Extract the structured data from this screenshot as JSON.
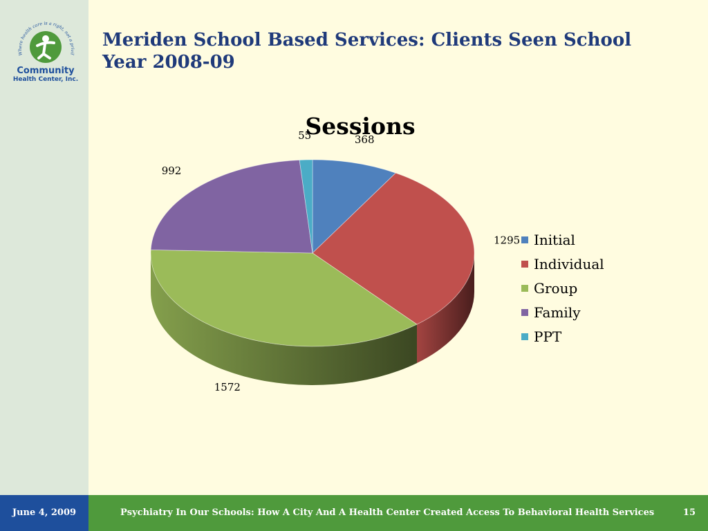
{
  "slide": {
    "title": "Meriden School Based Services: Clients Seen School Year 2008-09",
    "logo": {
      "arc_text": "Where health care is a right, not a privilege, since 1972.",
      "line1": "Community",
      "line2": "Health Center, Inc."
    }
  },
  "footer": {
    "date": "June 4, 2009",
    "text": "Psychiatry In Our Schools: How A City And A Health Center Created Access To  Behavioral Health Services",
    "page": "15"
  },
  "chart_data": {
    "type": "pie",
    "title": "Sessions",
    "legend_position": "right",
    "slices": [
      {
        "name": "Initial",
        "value": 368,
        "color": "#4F81BD"
      },
      {
        "name": "Individual",
        "value": 1295,
        "color": "#C0504D"
      },
      {
        "name": "Group",
        "value": 1572,
        "color": "#9BBB59"
      },
      {
        "name": "Family",
        "value": 992,
        "color": "#8064A2"
      },
      {
        "name": "PPT",
        "value": 55,
        "color": "#4BACC6"
      }
    ]
  }
}
